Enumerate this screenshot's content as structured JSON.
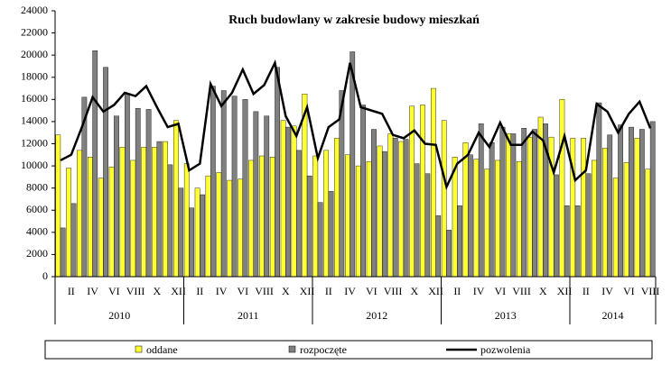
{
  "chart_data": {
    "type": "bar_line",
    "title": "Ruch budowlany w zakresie budowy mieszkań",
    "categories": [
      null,
      "II",
      null,
      "IV",
      null,
      "VI",
      null,
      "VIII",
      null,
      "X",
      null,
      "XII",
      null,
      "II",
      null,
      "IV",
      null,
      "VI",
      null,
      "VIII",
      null,
      "X",
      null,
      "XII",
      null,
      "II",
      null,
      "IV",
      null,
      "VI",
      null,
      "VIII",
      null,
      "X",
      null,
      "XII",
      null,
      "II",
      null,
      "IV",
      null,
      "VI",
      null,
      "VIII",
      null,
      "X",
      null,
      "XII",
      null,
      "II",
      null,
      "IV",
      null,
      "VI",
      null,
      "VIII"
    ],
    "years": [
      "2010",
      "2011",
      "2012",
      "2013",
      "2014"
    ],
    "series": [
      {
        "name": "oddane",
        "kind": "bar",
        "color": "#ffff33",
        "values": [
          12800,
          9800,
          11400,
          10800,
          8900,
          9900,
          11700,
          10500,
          11700,
          11700,
          12200,
          14100,
          10200,
          8000,
          9100,
          9400,
          8700,
          8800,
          10500,
          10900,
          10800,
          14100,
          13600,
          16500,
          10900,
          11400,
          12500,
          11000,
          10000,
          10400,
          11800,
          12900,
          12200,
          15400,
          15500,
          17000,
          14100,
          10800,
          12100,
          10600,
          9700,
          10500,
          12900,
          10400,
          12600,
          14400,
          12600,
          16000,
          12500,
          12500,
          10500,
          11600,
          8900,
          10300,
          12500,
          9700
        ]
      },
      {
        "name": "rozpoczęte",
        "kind": "bar",
        "color": "#808080",
        "values": [
          4400,
          6600,
          16200,
          20400,
          18900,
          14500,
          16500,
          15200,
          15100,
          12200,
          10100,
          8000,
          6200,
          7400,
          17200,
          16800,
          16300,
          16000,
          14900,
          14500,
          18900,
          13500,
          11400,
          9100,
          6700,
          7700,
          16800,
          20300,
          15500,
          13300,
          11300,
          12500,
          12400,
          10200,
          9300,
          5500,
          4200,
          6400,
          11000,
          13800,
          12100,
          13500,
          12900,
          13400,
          13300,
          13800,
          9200,
          6400,
          6400,
          9300,
          15700,
          12800,
          13700,
          13500,
          13300,
          14000
        ]
      },
      {
        "name": "pozwolenia",
        "kind": "line",
        "color": "#000000",
        "values": [
          10500,
          11000,
          13500,
          16200,
          14900,
          15500,
          16600,
          16300,
          17200,
          15300,
          13500,
          13800,
          9600,
          10200,
          17400,
          15400,
          16600,
          18700,
          16500,
          17300,
          19300,
          14500,
          12700,
          15300,
          10700,
          13500,
          14200,
          19300,
          15300,
          15000,
          14700,
          12800,
          12500,
          13200,
          12000,
          11900,
          8100,
          10200,
          11000,
          13000,
          11700,
          13900,
          11900,
          11900,
          13100,
          12300,
          9400,
          12700,
          8700,
          9600,
          15600,
          14900,
          13000,
          14700,
          15800,
          13400
        ]
      }
    ],
    "ylim": [
      0,
      24000
    ],
    "yticks": [
      0,
      2000,
      4000,
      6000,
      8000,
      10000,
      12000,
      14000,
      16000,
      18000,
      20000,
      22000,
      24000
    ]
  }
}
